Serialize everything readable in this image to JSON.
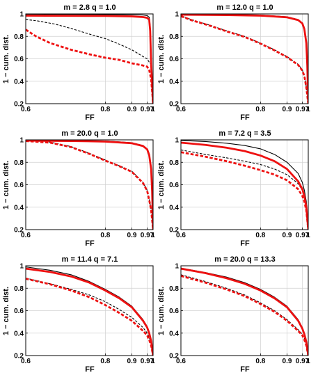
{
  "chart_data": [
    {
      "type": "line",
      "title": "m = 2.8 q = 1.0",
      "xlabel": "FF",
      "ylabel": "1 − cum. dist.",
      "xscale": "reciprocal",
      "xlim": [
        0.6,
        1.0
      ],
      "ylim": [
        0.2,
        1.0
      ],
      "xticks": [
        0.6,
        0.8,
        0.9,
        0.97,
        1
      ],
      "xtick_labels": [
        "0.6",
        "0.8",
        "0.9",
        "0.97",
        "1"
      ],
      "yticks": [
        0.2,
        0.4,
        0.6,
        0.8,
        1.0
      ],
      "ytick_labels": [
        "0.2",
        "0.4",
        "0.6",
        "0.8",
        "1"
      ],
      "grid": true,
      "series": [
        {
          "color": "#000000",
          "style": "solid",
          "x": [
            0.6,
            0.8,
            0.9,
            0.95,
            0.97,
            0.98,
            0.985,
            0.99,
            1.0
          ],
          "y": [
            0.998,
            0.995,
            0.993,
            0.99,
            0.985,
            0.97,
            0.9,
            0.6,
            0.2
          ]
        },
        {
          "color": "#000000",
          "style": "dashed",
          "x": [
            0.6,
            0.62,
            0.66,
            0.7,
            0.75,
            0.8,
            0.85,
            0.9,
            0.95,
            0.97,
            0.98,
            0.99,
            1.0
          ],
          "y": [
            0.95,
            0.94,
            0.91,
            0.87,
            0.82,
            0.78,
            0.73,
            0.68,
            0.62,
            0.6,
            0.57,
            0.55,
            0.22
          ]
        },
        {
          "color": "#ee1111",
          "style": "solid",
          "x": [
            0.6,
            0.8,
            0.9,
            0.95,
            0.97,
            0.98,
            0.985,
            0.99,
            1.0
          ],
          "y": [
            0.985,
            0.982,
            0.978,
            0.972,
            0.965,
            0.95,
            0.85,
            0.55,
            0.2
          ]
        },
        {
          "color": "#ee1111",
          "style": "dashed",
          "x": [
            0.6,
            0.62,
            0.65,
            0.7,
            0.75,
            0.8,
            0.85,
            0.9,
            0.95,
            0.97,
            0.98,
            0.99,
            1.0
          ],
          "y": [
            0.86,
            0.8,
            0.74,
            0.68,
            0.64,
            0.61,
            0.59,
            0.56,
            0.54,
            0.53,
            0.5,
            0.42,
            0.2
          ]
        }
      ]
    },
    {
      "type": "line",
      "title": "m = 12.0 q = 1.0",
      "xlabel": "FF",
      "ylabel": "1 − cum. dist.",
      "xscale": "reciprocal",
      "xlim": [
        0.6,
        1.0
      ],
      "ylim": [
        0.2,
        1.0
      ],
      "xticks": [
        0.6,
        0.8,
        0.9,
        0.97,
        1
      ],
      "xtick_labels": [
        "0.6",
        "0.8",
        "0.9",
        "0.97",
        "1"
      ],
      "yticks": [
        0.2,
        0.4,
        0.6,
        0.8,
        1.0
      ],
      "ytick_labels": [
        "0.2",
        "0.4",
        "0.6",
        "0.8",
        "1"
      ],
      "grid": true,
      "series": [
        {
          "color": "#000000",
          "style": "solid",
          "x": [
            0.6,
            0.7,
            0.8,
            0.9,
            0.95,
            0.97,
            0.98,
            0.99,
            0.995,
            1.0
          ],
          "y": [
            0.998,
            0.995,
            0.99,
            0.975,
            0.95,
            0.92,
            0.87,
            0.75,
            0.55,
            0.2
          ]
        },
        {
          "color": "#000000",
          "style": "dashed",
          "x": [
            0.6,
            0.62,
            0.66,
            0.7,
            0.75,
            0.8,
            0.85,
            0.9,
            0.95,
            0.97,
            0.98,
            0.99,
            1.0
          ],
          "y": [
            0.985,
            0.95,
            0.9,
            0.85,
            0.8,
            0.74,
            0.68,
            0.62,
            0.55,
            0.5,
            0.45,
            0.35,
            0.2
          ]
        },
        {
          "color": "#ee1111",
          "style": "solid",
          "x": [
            0.6,
            0.7,
            0.8,
            0.9,
            0.95,
            0.97,
            0.98,
            0.99,
            0.995,
            1.0
          ],
          "y": [
            0.993,
            0.99,
            0.985,
            0.97,
            0.945,
            0.915,
            0.865,
            0.74,
            0.54,
            0.2
          ]
        },
        {
          "color": "#ee1111",
          "style": "dashed",
          "x": [
            0.6,
            0.62,
            0.66,
            0.7,
            0.75,
            0.8,
            0.85,
            0.9,
            0.95,
            0.97,
            0.98,
            0.99,
            1.0
          ],
          "y": [
            0.98,
            0.945,
            0.895,
            0.845,
            0.795,
            0.735,
            0.675,
            0.615,
            0.545,
            0.495,
            0.445,
            0.345,
            0.2
          ]
        }
      ]
    },
    {
      "type": "line",
      "title": "m = 20.0 q = 1.0",
      "xlabel": "FF",
      "ylabel": "1 − cum. dist.",
      "xscale": "reciprocal",
      "xlim": [
        0.6,
        1.0
      ],
      "ylim": [
        0.2,
        1.0
      ],
      "xticks": [
        0.6,
        0.8,
        0.9,
        0.97,
        1
      ],
      "xtick_labels": [
        "0.6",
        "0.8",
        "0.9",
        "0.97",
        "1"
      ],
      "yticks": [
        0.2,
        0.4,
        0.6,
        0.8,
        1.0
      ],
      "ytick_labels": [
        "0.2",
        "0.4",
        "0.6",
        "0.8",
        "1"
      ],
      "grid": true,
      "series": [
        {
          "color": "#000000",
          "style": "solid",
          "x": [
            0.6,
            0.7,
            0.8,
            0.9,
            0.95,
            0.97,
            0.98,
            0.99,
            0.995,
            1.0
          ],
          "y": [
            0.998,
            0.995,
            0.99,
            0.975,
            0.95,
            0.92,
            0.87,
            0.75,
            0.55,
            0.2
          ]
        },
        {
          "color": "#000000",
          "style": "dashed",
          "x": [
            0.6,
            0.65,
            0.7,
            0.75,
            0.8,
            0.85,
            0.9,
            0.95,
            0.97,
            0.98,
            0.99,
            1.0
          ],
          "y": [
            0.995,
            0.98,
            0.94,
            0.88,
            0.82,
            0.77,
            0.72,
            0.62,
            0.55,
            0.47,
            0.38,
            0.2
          ]
        },
        {
          "color": "#ee1111",
          "style": "solid",
          "x": [
            0.6,
            0.7,
            0.8,
            0.9,
            0.95,
            0.97,
            0.98,
            0.99,
            0.995,
            1.0
          ],
          "y": [
            0.993,
            0.99,
            0.985,
            0.97,
            0.945,
            0.915,
            0.865,
            0.74,
            0.54,
            0.2
          ]
        },
        {
          "color": "#ee1111",
          "style": "dashed",
          "x": [
            0.6,
            0.65,
            0.7,
            0.75,
            0.8,
            0.85,
            0.9,
            0.95,
            0.97,
            0.98,
            0.99,
            1.0
          ],
          "y": [
            0.99,
            0.975,
            0.935,
            0.875,
            0.815,
            0.765,
            0.715,
            0.615,
            0.545,
            0.465,
            0.375,
            0.2
          ]
        }
      ]
    },
    {
      "type": "line",
      "title": "m = 7.2 q = 3.5",
      "xlabel": "FF",
      "ylabel": "1 − cum. dist.",
      "xscale": "reciprocal",
      "xlim": [
        0.6,
        1.0
      ],
      "ylim": [
        0.2,
        1.0
      ],
      "xticks": [
        0.6,
        0.8,
        0.9,
        0.97,
        1
      ],
      "xtick_labels": [
        "0.6",
        "0.8",
        "0.9",
        "0.97",
        "1"
      ],
      "yticks": [
        0.2,
        0.4,
        0.6,
        0.8,
        1.0
      ],
      "ytick_labels": [
        "0.2",
        "0.4",
        "0.6",
        "0.8",
        "1"
      ],
      "grid": true,
      "series": [
        {
          "color": "#000000",
          "style": "solid",
          "x": [
            0.6,
            0.65,
            0.7,
            0.75,
            0.8,
            0.85,
            0.9,
            0.95,
            0.97,
            0.98,
            0.99,
            1.0
          ],
          "y": [
            0.995,
            0.985,
            0.97,
            0.95,
            0.92,
            0.87,
            0.8,
            0.7,
            0.62,
            0.55,
            0.45,
            0.2
          ]
        },
        {
          "color": "#000000",
          "style": "dashed",
          "x": [
            0.6,
            0.65,
            0.7,
            0.75,
            0.8,
            0.85,
            0.9,
            0.95,
            0.97,
            0.98,
            0.99,
            1.0
          ],
          "y": [
            0.91,
            0.87,
            0.84,
            0.81,
            0.78,
            0.74,
            0.69,
            0.61,
            0.55,
            0.5,
            0.41,
            0.2
          ]
        },
        {
          "color": "#ee1111",
          "style": "solid",
          "x": [
            0.6,
            0.65,
            0.7,
            0.75,
            0.8,
            0.85,
            0.9,
            0.95,
            0.97,
            0.98,
            0.99,
            1.0
          ],
          "y": [
            0.975,
            0.955,
            0.93,
            0.9,
            0.86,
            0.81,
            0.74,
            0.63,
            0.56,
            0.5,
            0.4,
            0.2
          ]
        },
        {
          "color": "#ee1111",
          "style": "dashed",
          "x": [
            0.6,
            0.65,
            0.7,
            0.75,
            0.8,
            0.85,
            0.9,
            0.95,
            0.97,
            0.98,
            0.99,
            1.0
          ],
          "y": [
            0.89,
            0.85,
            0.81,
            0.77,
            0.73,
            0.69,
            0.64,
            0.56,
            0.5,
            0.45,
            0.37,
            0.2
          ]
        }
      ]
    },
    {
      "type": "line",
      "title": "m = 11.4 q = 7.1",
      "xlabel": "FF",
      "ylabel": "1 − cum. dist.",
      "xscale": "reciprocal",
      "xlim": [
        0.6,
        1.0
      ],
      "ylim": [
        0.2,
        1.0
      ],
      "xticks": [
        0.6,
        0.8,
        0.9,
        0.97,
        1
      ],
      "xtick_labels": [
        "0.6",
        "0.8",
        "0.9",
        "0.97",
        "1"
      ],
      "yticks": [
        0.2,
        0.4,
        0.6,
        0.8,
        1.0
      ],
      "ytick_labels": [
        "0.2",
        "0.4",
        "0.6",
        "0.8",
        "1"
      ],
      "grid": true,
      "series": [
        {
          "color": "#000000",
          "style": "solid",
          "x": [
            0.6,
            0.65,
            0.7,
            0.75,
            0.8,
            0.85,
            0.9,
            0.95,
            0.97,
            0.98,
            0.99,
            1.0
          ],
          "y": [
            0.99,
            0.96,
            0.92,
            0.86,
            0.79,
            0.72,
            0.64,
            0.52,
            0.46,
            0.41,
            0.34,
            0.2
          ]
        },
        {
          "color": "#000000",
          "style": "dashed",
          "x": [
            0.6,
            0.65,
            0.7,
            0.75,
            0.8,
            0.85,
            0.9,
            0.95,
            0.97,
            0.98,
            0.99,
            1.0
          ],
          "y": [
            0.89,
            0.84,
            0.79,
            0.74,
            0.68,
            0.61,
            0.54,
            0.45,
            0.4,
            0.36,
            0.31,
            0.2
          ]
        },
        {
          "color": "#ee1111",
          "style": "solid",
          "x": [
            0.6,
            0.65,
            0.7,
            0.75,
            0.8,
            0.85,
            0.9,
            0.95,
            0.97,
            0.98,
            0.99,
            1.0
          ],
          "y": [
            0.975,
            0.945,
            0.905,
            0.85,
            0.78,
            0.71,
            0.63,
            0.51,
            0.45,
            0.4,
            0.33,
            0.2
          ]
        },
        {
          "color": "#ee1111",
          "style": "dashed",
          "x": [
            0.6,
            0.65,
            0.7,
            0.75,
            0.8,
            0.85,
            0.9,
            0.95,
            0.97,
            0.98,
            0.99,
            1.0
          ],
          "y": [
            0.885,
            0.835,
            0.78,
            0.72,
            0.65,
            0.58,
            0.51,
            0.42,
            0.38,
            0.34,
            0.29,
            0.2
          ]
        }
      ]
    },
    {
      "type": "line",
      "title": "m = 20.0 q = 13.3",
      "xlabel": "FF",
      "ylabel": "1 − cum. dist.",
      "xscale": "reciprocal",
      "xlim": [
        0.6,
        1.0
      ],
      "ylim": [
        0.2,
        1.0
      ],
      "xticks": [
        0.6,
        0.8,
        0.9,
        0.97,
        1
      ],
      "xtick_labels": [
        "0.6",
        "0.8",
        "0.9",
        "0.97",
        "1"
      ],
      "yticks": [
        0.2,
        0.4,
        0.6,
        0.8,
        1.0
      ],
      "ytick_labels": [
        "0.2",
        "0.4",
        "0.6",
        "0.8",
        "1"
      ],
      "grid": true,
      "series": [
        {
          "color": "#000000",
          "style": "solid",
          "x": [
            0.6,
            0.65,
            0.7,
            0.75,
            0.8,
            0.85,
            0.9,
            0.95,
            0.97,
            0.98,
            0.99,
            1.0
          ],
          "y": [
            0.98,
            0.94,
            0.9,
            0.85,
            0.79,
            0.72,
            0.64,
            0.52,
            0.45,
            0.4,
            0.33,
            0.2
          ]
        },
        {
          "color": "#000000",
          "style": "dashed",
          "x": [
            0.6,
            0.65,
            0.7,
            0.75,
            0.8,
            0.85,
            0.9,
            0.95,
            0.97,
            0.98,
            0.99,
            1.0
          ],
          "y": [
            0.92,
            0.86,
            0.8,
            0.74,
            0.67,
            0.6,
            0.52,
            0.43,
            0.39,
            0.35,
            0.3,
            0.2
          ]
        },
        {
          "color": "#ee1111",
          "style": "solid",
          "x": [
            0.6,
            0.65,
            0.7,
            0.75,
            0.8,
            0.85,
            0.9,
            0.95,
            0.97,
            0.98,
            0.99,
            1.0
          ],
          "y": [
            0.975,
            0.935,
            0.89,
            0.84,
            0.78,
            0.71,
            0.63,
            0.51,
            0.44,
            0.39,
            0.32,
            0.2
          ]
        },
        {
          "color": "#ee1111",
          "style": "dashed",
          "x": [
            0.6,
            0.65,
            0.7,
            0.75,
            0.8,
            0.85,
            0.9,
            0.95,
            0.97,
            0.98,
            0.99,
            1.0
          ],
          "y": [
            0.91,
            0.85,
            0.79,
            0.73,
            0.66,
            0.59,
            0.51,
            0.42,
            0.38,
            0.34,
            0.29,
            0.2
          ]
        }
      ]
    }
  ]
}
